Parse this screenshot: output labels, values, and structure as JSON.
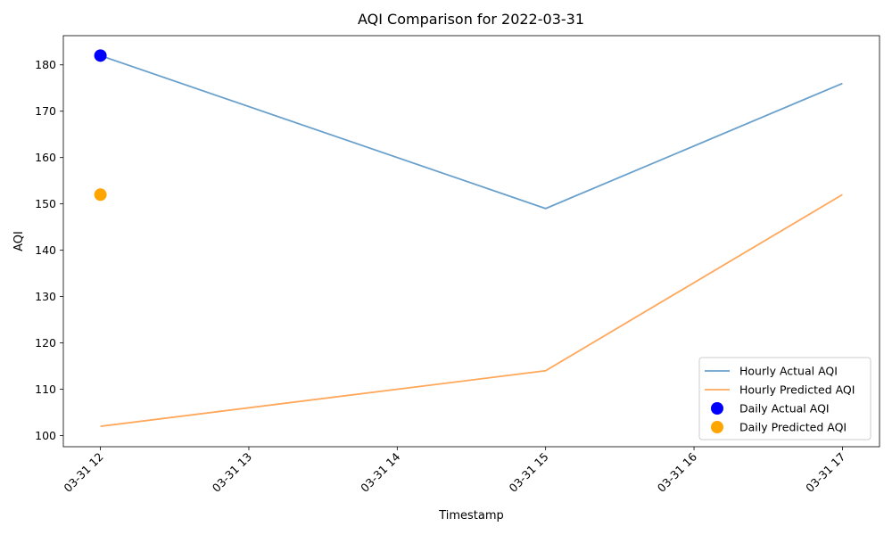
{
  "chart_data": {
    "type": "line",
    "title": "AQI Comparison for 2022-03-31",
    "xlabel": "Timestamp",
    "ylabel": "AQI",
    "grid": false,
    "legend_position": "lower-right",
    "xlim_hours": [
      11.75,
      17.25
    ],
    "ylim": [
      97.6,
      186.3
    ],
    "x_ticks": [
      {
        "value": 12,
        "label": "03-31 12"
      },
      {
        "value": 13,
        "label": "03-31 13"
      },
      {
        "value": 14,
        "label": "03-31 14"
      },
      {
        "value": 15,
        "label": "03-31 15"
      },
      {
        "value": 16,
        "label": "03-31 16"
      },
      {
        "value": 17,
        "label": "03-31 17"
      }
    ],
    "y_ticks": [
      100,
      110,
      120,
      130,
      140,
      150,
      160,
      170,
      180
    ],
    "line_series": [
      {
        "name": "Hourly Actual AQI",
        "color": "#6aa1cc",
        "points": [
          {
            "x": "03-31 12",
            "hour": 12,
            "y": 182
          },
          {
            "x": "03-31 15",
            "hour": 15,
            "y": 149
          },
          {
            "x": "03-31 17",
            "hour": 17,
            "y": 176
          }
        ]
      },
      {
        "name": "Hourly Predicted AQI",
        "color": "#ffa85c",
        "points": [
          {
            "x": "03-31 12",
            "hour": 12,
            "y": 102
          },
          {
            "x": "03-31 15",
            "hour": 15,
            "y": 114
          },
          {
            "x": "03-31 17",
            "hour": 17,
            "y": 152
          }
        ]
      }
    ],
    "scatter_series": [
      {
        "name": "Daily Actual AQI",
        "color": "#0000ff",
        "points": [
          {
            "x": "03-31 12",
            "hour": 12,
            "y": 182
          }
        ]
      },
      {
        "name": "Daily Predicted AQI",
        "color": "#ffa500",
        "points": [
          {
            "x": "03-31 12",
            "hour": 12,
            "y": 152
          }
        ]
      }
    ]
  }
}
